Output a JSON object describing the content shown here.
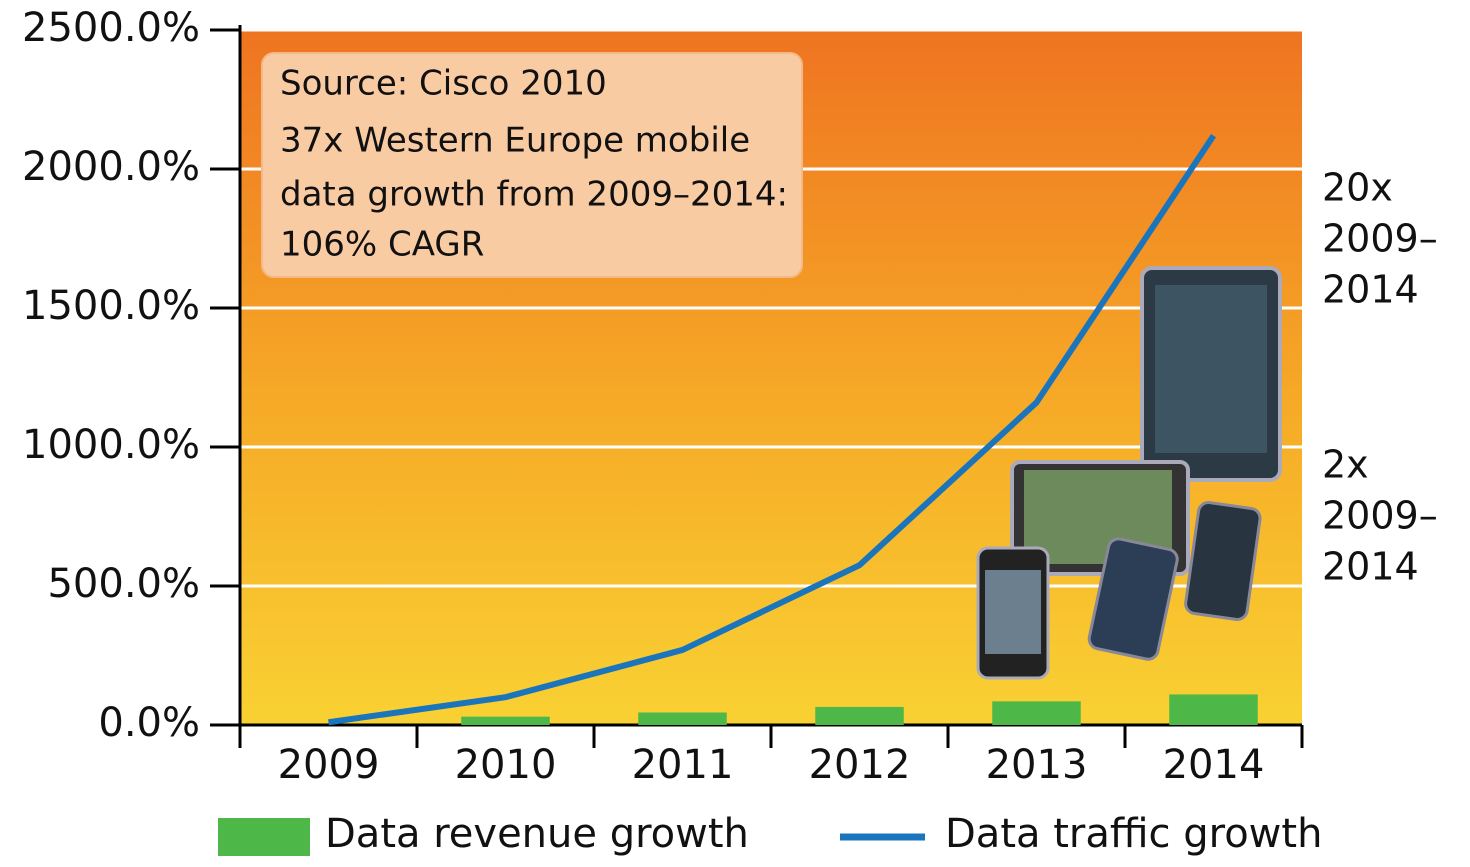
{
  "chart_data": {
    "type": "bar-line",
    "categories": [
      "2009",
      "2010",
      "2011",
      "2012",
      "2013",
      "2014"
    ],
    "series": [
      {
        "name": "Data revenue growth",
        "type": "bar",
        "color": "#4db848",
        "values": [
          0,
          30,
          45,
          65,
          85,
          110
        ]
      },
      {
        "name": "Data traffic growth",
        "type": "line",
        "color": "#1a75bc",
        "values": [
          10,
          100,
          270,
          575,
          1160,
          2120
        ]
      }
    ],
    "ylim": [
      0,
      2500
    ],
    "yticks": [
      {
        "value": 0,
        "label": "0.0%"
      },
      {
        "value": 500,
        "label": "500.0%"
      },
      {
        "value": 1000,
        "label": "1000.0%"
      },
      {
        "value": 1500,
        "label": "1500.0%"
      },
      {
        "value": 2000,
        "label": "2000.0%"
      },
      {
        "value": 2500,
        "label": "2500.0%"
      }
    ],
    "grid": true,
    "legend": "bottom",
    "annotation_box": [
      "Source: Cisco 2010",
      "37x Western Europe mobile",
      "data growth from 2009–2014:",
      "106% CAGR"
    ],
    "side_annotations": [
      [
        "20x",
        "2009–",
        "2014"
      ],
      [
        "2x",
        "2009–",
        "2014"
      ]
    ]
  }
}
